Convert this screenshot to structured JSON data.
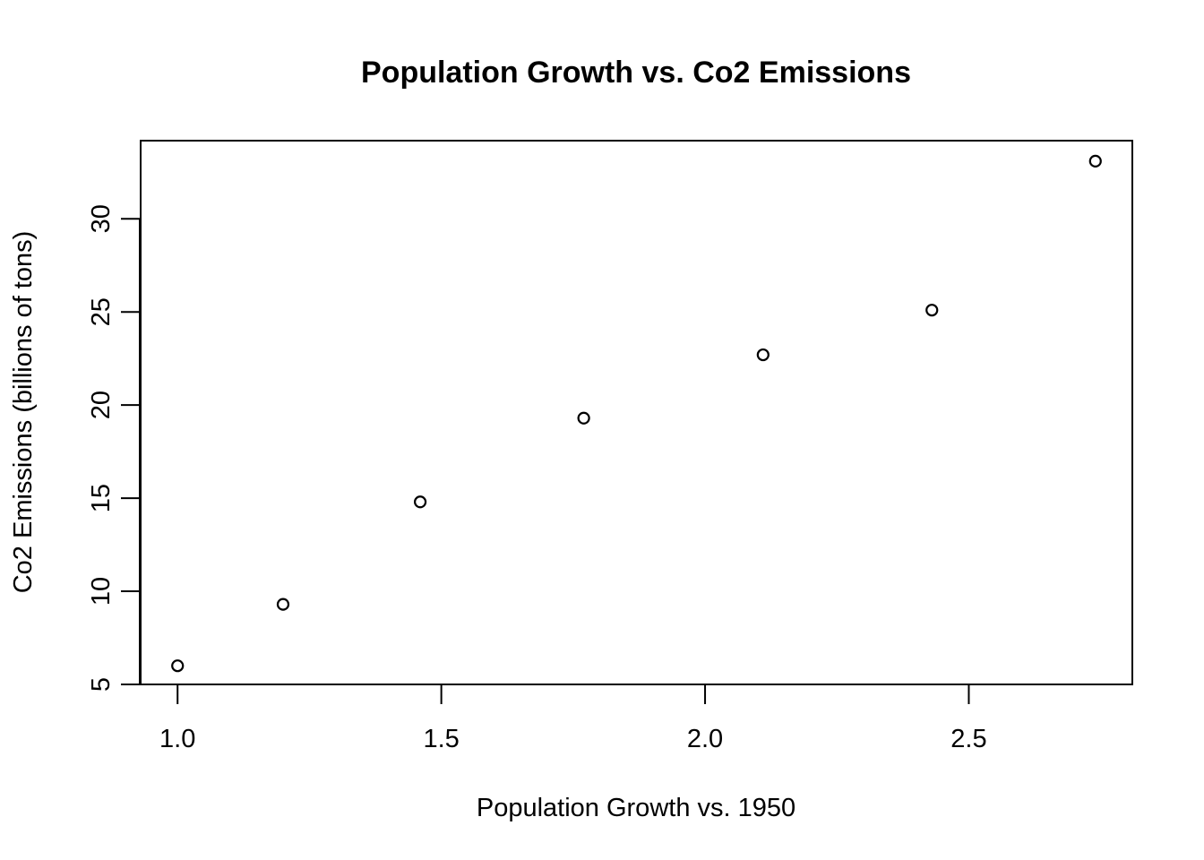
{
  "chart_data": {
    "type": "scatter",
    "title": "Population Growth vs. Co2 Emissions",
    "xlabel": "Population Growth vs. 1950",
    "ylabel": "Co2 Emissions (billions of tons)",
    "x": [
      1.0,
      1.2,
      1.46,
      1.77,
      2.11,
      2.43,
      2.74
    ],
    "y": [
      6.0,
      9.3,
      14.8,
      19.3,
      22.7,
      25.1,
      33.1
    ],
    "xlim": [
      0.93,
      2.81
    ],
    "ylim": [
      5.0,
      34.2
    ],
    "x_ticks": [
      1.0,
      1.5,
      2.0,
      2.5
    ],
    "x_tick_labels": [
      "1.0",
      "1.5",
      "2.0",
      "2.5"
    ],
    "y_ticks": [
      5,
      10,
      15,
      20,
      25,
      30
    ],
    "y_tick_labels": [
      "5",
      "10",
      "15",
      "20",
      "25",
      "30"
    ],
    "grid": false,
    "marker": "open-circle",
    "colors": {
      "point": "#000000",
      "background": "#ffffff"
    }
  }
}
